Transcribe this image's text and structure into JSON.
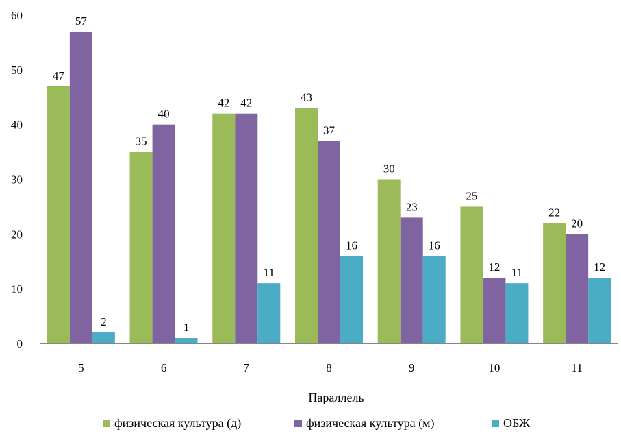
{
  "chart_data": {
    "type": "bar",
    "title": "",
    "xlabel": "Параллель",
    "ylabel": "",
    "categories": [
      "5",
      "6",
      "7",
      "8",
      "9",
      "10",
      "11"
    ],
    "series": [
      {
        "name": "физическая культура (д)",
        "color": "#9bbb59",
        "values": [
          47,
          35,
          42,
          43,
          30,
          25,
          22
        ]
      },
      {
        "name": "физическая культура (м)",
        "color": "#8064a2",
        "values": [
          57,
          40,
          42,
          37,
          23,
          12,
          20
        ]
      },
      {
        "name": "ОБЖ",
        "color": "#4bacc6",
        "values": [
          2,
          1,
          11,
          16,
          16,
          11,
          12
        ]
      }
    ],
    "ylim": [
      0,
      60
    ],
    "yticks": [
      "0",
      "10",
      "20",
      "30",
      "40",
      "50",
      "60"
    ],
    "grid": false,
    "data_labels": true,
    "legend": "bottom"
  }
}
